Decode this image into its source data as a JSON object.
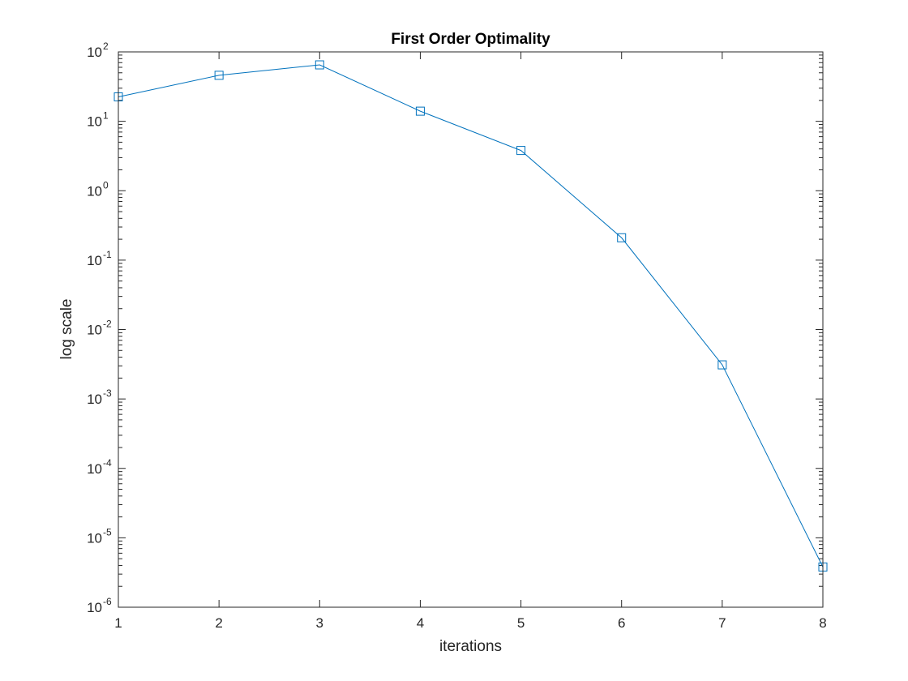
{
  "chart_data": {
    "type": "line",
    "title": "First Order Optimality",
    "xlabel": "iterations",
    "ylabel": "log scale",
    "xlim": [
      1,
      8
    ],
    "ylim": [
      1e-06,
      100
    ],
    "yscale": "log",
    "grid": false,
    "x_ticks": [
      "1",
      "2",
      "3",
      "4",
      "5",
      "6",
      "7",
      "8"
    ],
    "y_ticks": [
      {
        "base": "10",
        "exp": "-6"
      },
      {
        "base": "10",
        "exp": "-5"
      },
      {
        "base": "10",
        "exp": "-4"
      },
      {
        "base": "10",
        "exp": "-3"
      },
      {
        "base": "10",
        "exp": "-2"
      },
      {
        "base": "10",
        "exp": "-1"
      },
      {
        "base": "10",
        "exp": "0"
      },
      {
        "base": "10",
        "exp": "1"
      },
      {
        "base": "10",
        "exp": "2"
      }
    ],
    "series": [
      {
        "marker": "square",
        "color": "#0072BD",
        "x": [
          1,
          2,
          3,
          4,
          5,
          6,
          7,
          8
        ],
        "y": [
          22.5,
          46.0,
          65.0,
          14.0,
          3.8,
          0.21,
          0.0031,
          3.8e-06
        ]
      }
    ]
  }
}
